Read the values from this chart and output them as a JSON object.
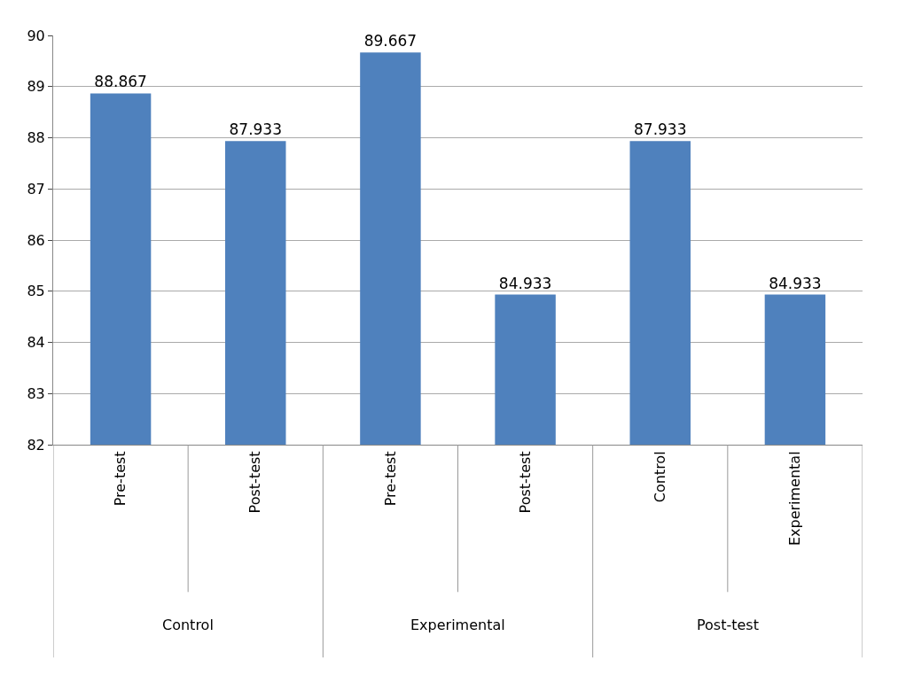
{
  "chart_data": {
    "type": "bar",
    "categories": [
      "Pre-test",
      "Post-test",
      "Pre-test",
      "Post-test",
      "Control",
      "Experimental"
    ],
    "values": [
      88.867,
      87.933,
      89.667,
      84.933,
      87.933,
      84.933
    ],
    "color": "#4f81bd",
    "ylim": [
      82,
      90
    ],
    "yticks": [
      82,
      83,
      84,
      85,
      86,
      87,
      88,
      89,
      90
    ],
    "grid": "y",
    "data_labels": true,
    "annotations": [
      "Control",
      "Experimental",
      "Post-test"
    ]
  }
}
